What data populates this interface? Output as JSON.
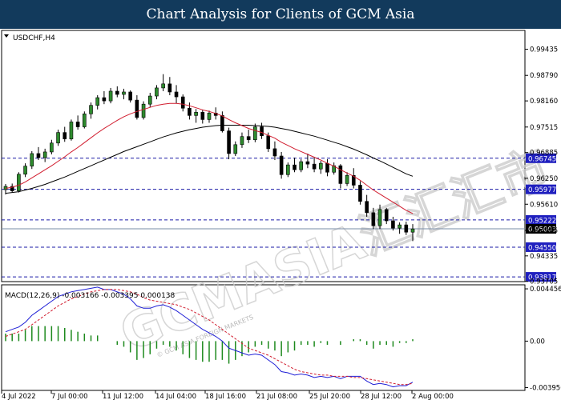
{
  "banner": {
    "title": "Chart Analysis for Clients of GCM Asia"
  },
  "watermark": {
    "text": "GCMASIA汇汇汇市",
    "sub": "© GCM ASIA FOREIGN MARKETS"
  },
  "chart_data": {
    "type": "candlestick",
    "symbol_label": "USDCHF,H4",
    "price_axis": {
      "ylim": [
        0.937,
        0.999
      ],
      "tick_labels": [
        "0.99435",
        "0.98790",
        "0.98160",
        "0.97515",
        "0.96885",
        "0.96250",
        "0.95610",
        "0.94965",
        "0.94335",
        "0.93705"
      ],
      "tick_values": [
        0.99435,
        0.9879,
        0.9816,
        0.97515,
        0.96885,
        0.9625,
        0.9561,
        0.94965,
        0.94335,
        0.93705
      ]
    },
    "levels": [
      {
        "label": "0.96745",
        "value": 0.96745
      },
      {
        "label": "0.95977",
        "value": 0.95977
      },
      {
        "label": "0.95222",
        "value": 0.95222
      },
      {
        "label": "0.94550",
        "value": 0.9455
      },
      {
        "label": "0.93817",
        "value": 0.93817
      }
    ],
    "current_price": {
      "label": "0.95003",
      "value": 0.95003
    },
    "x_labels": [
      "4 Jul 2022",
      "7 Jul 00:00",
      "11 Jul 12:00",
      "14 Jul 04:00",
      "18 Jul 16:00",
      "21 Jul 08:00",
      "25 Jul 20:00",
      "28 Jul 12:00",
      "2 Aug 00:00"
    ],
    "candles": [
      [
        0.9597,
        0.9611,
        0.9585,
        0.9605
      ],
      [
        0.9605,
        0.9612,
        0.959,
        0.9594
      ],
      [
        0.9594,
        0.964,
        0.959,
        0.9635
      ],
      [
        0.9635,
        0.9662,
        0.9628,
        0.9655
      ],
      [
        0.9655,
        0.9692,
        0.9648,
        0.9686
      ],
      [
        0.9686,
        0.9702,
        0.967,
        0.9676
      ],
      [
        0.9676,
        0.9698,
        0.9665,
        0.969
      ],
      [
        0.969,
        0.972,
        0.9684,
        0.9712
      ],
      [
        0.9712,
        0.9745,
        0.9705,
        0.9738
      ],
      [
        0.9738,
        0.9752,
        0.9715,
        0.9722
      ],
      [
        0.9722,
        0.977,
        0.9718,
        0.9764
      ],
      [
        0.9764,
        0.978,
        0.9745,
        0.9752
      ],
      [
        0.9752,
        0.979,
        0.9748,
        0.9784
      ],
      [
        0.9784,
        0.9812,
        0.9772,
        0.9805
      ],
      [
        0.9805,
        0.983,
        0.9795,
        0.9824
      ],
      [
        0.9824,
        0.984,
        0.9808,
        0.9816
      ],
      [
        0.9816,
        0.9848,
        0.981,
        0.984
      ],
      [
        0.984,
        0.9852,
        0.9825,
        0.9832
      ],
      [
        0.9832,
        0.9846,
        0.982,
        0.9838
      ],
      [
        0.9838,
        0.9842,
        0.9812,
        0.9818
      ],
      [
        0.9818,
        0.983,
        0.977,
        0.9775
      ],
      [
        0.9775,
        0.9815,
        0.977,
        0.9808
      ],
      [
        0.9808,
        0.9836,
        0.98,
        0.9828
      ],
      [
        0.9828,
        0.9855,
        0.982,
        0.9848
      ],
      [
        0.9848,
        0.9882,
        0.984,
        0.9858
      ],
      [
        0.9858,
        0.9875,
        0.983,
        0.9838
      ],
      [
        0.9838,
        0.9855,
        0.981,
        0.9826
      ],
      [
        0.9826,
        0.9832,
        0.979,
        0.9798
      ],
      [
        0.9798,
        0.9812,
        0.977,
        0.978
      ],
      [
        0.978,
        0.9796,
        0.9762,
        0.9788
      ],
      [
        0.9788,
        0.9794,
        0.976,
        0.977
      ],
      [
        0.977,
        0.9792,
        0.9762,
        0.9786
      ],
      [
        0.9786,
        0.98,
        0.977,
        0.978
      ],
      [
        0.978,
        0.979,
        0.9738,
        0.9742
      ],
      [
        0.9742,
        0.975,
        0.9672,
        0.9686
      ],
      [
        0.9686,
        0.9716,
        0.968,
        0.9708
      ],
      [
        0.9708,
        0.9738,
        0.97,
        0.9728
      ],
      [
        0.9728,
        0.9745,
        0.9712,
        0.972
      ],
      [
        0.972,
        0.976,
        0.9714,
        0.9752
      ],
      [
        0.9752,
        0.9762,
        0.9722,
        0.973
      ],
      [
        0.973,
        0.9738,
        0.969,
        0.9698
      ],
      [
        0.9698,
        0.9716,
        0.967,
        0.968
      ],
      [
        0.968,
        0.969,
        0.9624,
        0.9634
      ],
      [
        0.9634,
        0.9664,
        0.9628,
        0.9658
      ],
      [
        0.9658,
        0.9676,
        0.964,
        0.9646
      ],
      [
        0.9646,
        0.9672,
        0.964,
        0.9666
      ],
      [
        0.9666,
        0.9686,
        0.965,
        0.966
      ],
      [
        0.966,
        0.9678,
        0.964,
        0.9648
      ],
      [
        0.9648,
        0.9668,
        0.9636,
        0.9662
      ],
      [
        0.9662,
        0.9672,
        0.963,
        0.964
      ],
      [
        0.964,
        0.9664,
        0.9634,
        0.9656
      ],
      [
        0.9656,
        0.966,
        0.96,
        0.9612
      ],
      [
        0.9612,
        0.964,
        0.9606,
        0.9632
      ],
      [
        0.9632,
        0.965,
        0.96,
        0.9608
      ],
      [
        0.9608,
        0.9618,
        0.956,
        0.9568
      ],
      [
        0.9568,
        0.9584,
        0.953,
        0.954
      ],
      [
        0.954,
        0.9552,
        0.95,
        0.9508
      ],
      [
        0.9508,
        0.956,
        0.95,
        0.9548
      ],
      [
        0.9548,
        0.9552,
        0.9512,
        0.952
      ],
      [
        0.952,
        0.953,
        0.9496,
        0.9502
      ],
      [
        0.9502,
        0.9516,
        0.9488,
        0.951
      ],
      [
        0.951,
        0.9518,
        0.9485,
        0.9492
      ],
      [
        0.9492,
        0.9512,
        0.947,
        0.95
      ]
    ],
    "ma_red": [
      0.96,
      0.9603,
      0.9608,
      0.9616,
      0.9626,
      0.9636,
      0.9646,
      0.9656,
      0.9667,
      0.9678,
      0.969,
      0.9701,
      0.9713,
      0.9725,
      0.9737,
      0.9748,
      0.9758,
      0.9768,
      0.9777,
      0.9784,
      0.979,
      0.9795,
      0.98,
      0.9805,
      0.9808,
      0.981,
      0.981,
      0.9808,
      0.9804,
      0.9799,
      0.9794,
      0.979,
      0.9785,
      0.9779,
      0.977,
      0.9762,
      0.9755,
      0.9748,
      0.9743,
      0.9738,
      0.9731,
      0.9724,
      0.9714,
      0.9706,
      0.9698,
      0.9691,
      0.9684,
      0.9677,
      0.967,
      0.9662,
      0.9655,
      0.9646,
      0.9638,
      0.963,
      0.962,
      0.9608,
      0.9596,
      0.9586,
      0.9576,
      0.9566,
      0.9556,
      0.9546,
      0.9538
    ],
    "ma_black": [
      0.9588,
      0.959,
      0.9592,
      0.9596,
      0.96,
      0.9605,
      0.961,
      0.9616,
      0.9622,
      0.9628,
      0.9635,
      0.9642,
      0.9649,
      0.9656,
      0.9663,
      0.967,
      0.9677,
      0.9684,
      0.9691,
      0.9697,
      0.9703,
      0.9709,
      0.9715,
      0.9721,
      0.9727,
      0.9732,
      0.9737,
      0.9741,
      0.9745,
      0.9748,
      0.9751,
      0.9753,
      0.9755,
      0.9756,
      0.9756,
      0.9756,
      0.9756,
      0.9756,
      0.9755,
      0.9754,
      0.9753,
      0.9751,
      0.9748,
      0.9745,
      0.9741,
      0.9737,
      0.9733,
      0.9729,
      0.9724,
      0.9719,
      0.9714,
      0.9709,
      0.9703,
      0.9697,
      0.969,
      0.9683,
      0.9675,
      0.9668,
      0.966,
      0.9652,
      0.9644,
      0.9636,
      0.963
    ],
    "macd": {
      "label": "MACD(12,26,9) -0.003166 -0.003395 0.000138",
      "ylim": [
        -0.0042,
        0.0048
      ],
      "tick_labels": [
        "0.004456",
        "0.00",
        "-0.003956"
      ],
      "tick_values": [
        0.004456,
        0.0,
        -0.003956
      ],
      "macd_line": [
        0.0008,
        0.001,
        0.0012,
        0.0016,
        0.0022,
        0.0026,
        0.003,
        0.0034,
        0.0038,
        0.004,
        0.0042,
        0.0043,
        0.0044,
        0.0045,
        0.0046,
        0.0044,
        0.0044,
        0.0042,
        0.004,
        0.0036,
        0.003,
        0.0028,
        0.0028,
        0.003,
        0.0031,
        0.0029,
        0.0026,
        0.0022,
        0.0018,
        0.0014,
        0.001,
        0.0007,
        0.0004,
        0.0,
        -0.0006,
        -0.0008,
        -0.001,
        -0.0012,
        -0.0011,
        -0.0012,
        -0.0016,
        -0.002,
        -0.0026,
        -0.0027,
        -0.0029,
        -0.0028,
        -0.0029,
        -0.0031,
        -0.003,
        -0.0031,
        -0.003,
        -0.0032,
        -0.003,
        -0.003,
        -0.003,
        -0.0034,
        -0.0037,
        -0.0036,
        -0.0037,
        -0.0039,
        -0.0038,
        -0.0038,
        -0.0035
      ],
      "signal_line": [
        0.0004,
        0.0006,
        0.0008,
        0.001,
        0.0014,
        0.0018,
        0.0022,
        0.0026,
        0.003,
        0.0033,
        0.0036,
        0.0038,
        0.004,
        0.0042,
        0.0043,
        0.0044,
        0.0044,
        0.0044,
        0.0043,
        0.0042,
        0.004,
        0.0037,
        0.0035,
        0.0034,
        0.0033,
        0.0032,
        0.0031,
        0.0029,
        0.0027,
        0.0024,
        0.0021,
        0.0018,
        0.0014,
        0.001,
        0.0006,
        0.0002,
        -0.0002,
        -0.0006,
        -0.0008,
        -0.001,
        -0.0012,
        -0.0015,
        -0.0018,
        -0.0021,
        -0.0024,
        -0.0026,
        -0.0027,
        -0.0028,
        -0.0029,
        -0.0029,
        -0.003,
        -0.003,
        -0.003,
        -0.0031,
        -0.0031,
        -0.0032,
        -0.0033,
        -0.0034,
        -0.0035,
        -0.0036,
        -0.0037,
        -0.0037,
        -0.0036
      ]
    }
  }
}
